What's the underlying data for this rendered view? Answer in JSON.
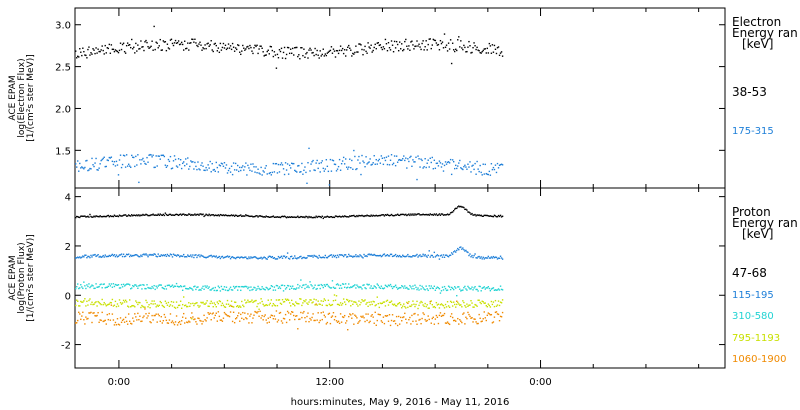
{
  "chart_data": [
    {
      "type": "scatter",
      "panel": "electron",
      "ylabel_lines": [
        "ACE EPAM",
        "log(Electron Flux)",
        "[1/(cm²s ster MeV)]"
      ],
      "yticks": [
        "1.5",
        "2.0",
        "2.5",
        "3.0"
      ],
      "ytick_values": [
        1.5,
        2.0,
        2.5,
        3.0
      ],
      "ylim": [
        1.05,
        3.2
      ],
      "xlim_hours": [
        -2.5,
        34.5
      ],
      "data_end_hour": 21.8,
      "legend_title_lines": [
        "Electron",
        "Energy ran",
        "[keV]"
      ],
      "series": [
        {
          "name": "38-53",
          "color": "#000000",
          "mean": 2.72,
          "spread": 0.07,
          "spike": 0.0
        },
        {
          "name": "175-315",
          "color": "#1e7fd8",
          "mean": 1.33,
          "spread": 0.08,
          "spike": 0.0
        }
      ]
    },
    {
      "type": "scatter",
      "panel": "proton",
      "ylabel_lines": [
        "ACE EPAM",
        "log(Proton Flux)",
        "[1/(cm²s ster MeV)]"
      ],
      "yticks": [
        "-2",
        "0",
        "2",
        "4"
      ],
      "ytick_values": [
        -2,
        0,
        2,
        4
      ],
      "ylim": [
        -2.95,
        4.35
      ],
      "xlim_hours": [
        -2.5,
        34.5
      ],
      "data_end_hour": 21.8,
      "legend_title_lines": [
        "Proton",
        "Energy ran",
        "[keV]"
      ],
      "series": [
        {
          "name": "47-68",
          "color": "#000000",
          "mean": 3.25,
          "spread": 0.03,
          "spike": 0.35
        },
        {
          "name": "115-195",
          "color": "#1e7fd8",
          "mean": 1.6,
          "spread": 0.06,
          "spike": 0.35
        },
        {
          "name": "310-580",
          "color": "#22d3d3",
          "mean": 0.35,
          "spread": 0.1,
          "spike": 0.0
        },
        {
          "name": "795-1193",
          "color": "#c8e000",
          "mean": -0.3,
          "spread": 0.15,
          "spike": 0.0
        },
        {
          "name": "1060-1900",
          "color": "#f08a00",
          "mean": -0.9,
          "spread": 0.25,
          "spike": 0.0
        }
      ]
    }
  ],
  "x_axis": {
    "tick_labels": [
      "0:00",
      "12:00",
      "0:00"
    ],
    "tick_hours": [
      0,
      12,
      24
    ],
    "xlabel": "hours:minutes, May  9, 2016 - May 11, 2016"
  }
}
